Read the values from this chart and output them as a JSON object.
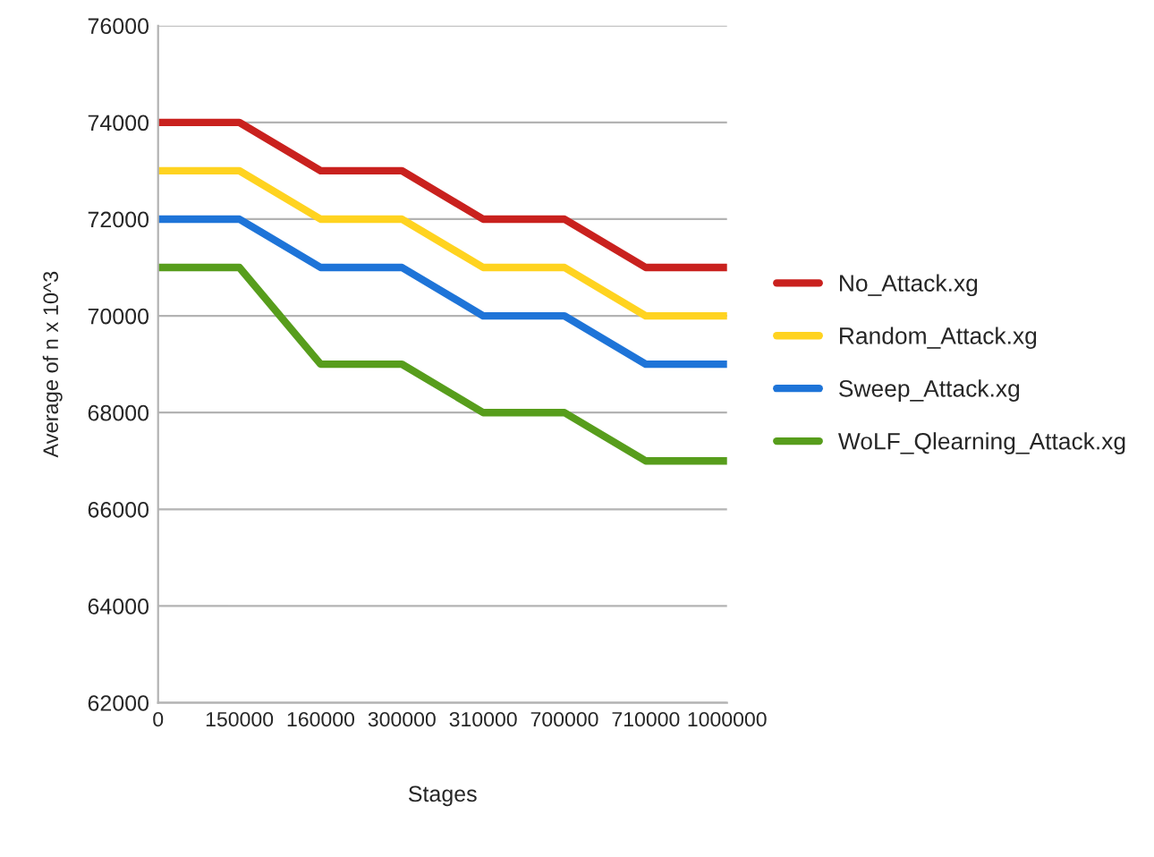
{
  "chart_data": {
    "type": "line",
    "xlabel": "Stages",
    "ylabel": "Average of n x 10^3",
    "categories": [
      "0",
      "150000",
      "160000",
      "300000",
      "310000",
      "700000",
      "710000",
      "1000000"
    ],
    "series": [
      {
        "name": "No_Attack.xg",
        "color": "#c9211e",
        "values": [
          74000,
          74000,
          73000,
          73000,
          72000,
          72000,
          71000,
          71000
        ]
      },
      {
        "name": "Random_Attack.xg",
        "color": "#ffd320",
        "values": [
          73000,
          73000,
          72000,
          72000,
          71000,
          71000,
          70000,
          70000
        ]
      },
      {
        "name": "Sweep_Attack.xg",
        "color": "#1e74d8",
        "values": [
          72000,
          72000,
          71000,
          71000,
          70000,
          70000,
          69000,
          69000
        ]
      },
      {
        "name": "WoLF_Qlearning_Attack.xg",
        "color": "#579d1c",
        "values": [
          71000,
          71000,
          69000,
          69000,
          68000,
          68000,
          67000,
          67000
        ]
      }
    ],
    "ylim": [
      62000,
      76000
    ],
    "yticks": [
      62000,
      64000,
      66000,
      68000,
      70000,
      72000,
      74000,
      76000
    ],
    "grid": "y",
    "legend": "right"
  }
}
